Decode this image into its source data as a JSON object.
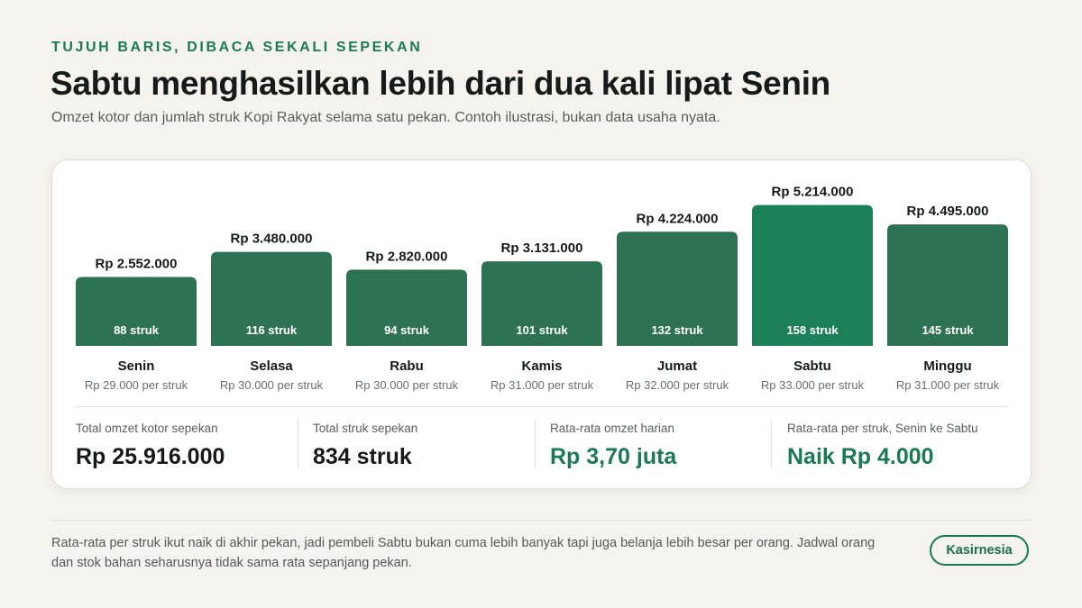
{
  "header": {
    "eyebrow": "TUJUH BARIS, DIBACA SEKALI SEPEKAN",
    "title": "Sabtu menghasilkan lebih dari dua kali lipat Senin",
    "subtitle": "Omzet kotor dan jumlah struk Kopi Rakyat selama satu pekan. Contoh ilustrasi, bukan data usaha nyata."
  },
  "colors": {
    "bar": "#2e7254",
    "highlight": "#1b7f57",
    "accent": "#1b7a52"
  },
  "chart_data": {
    "type": "bar",
    "categories": [
      "Senin",
      "Selasa",
      "Rabu",
      "Kamis",
      "Jumat",
      "Sabtu",
      "Minggu"
    ],
    "values": [
      2552000,
      3480000,
      2820000,
      3131000,
      4224000,
      5214000,
      4495000
    ],
    "value_labels": [
      "Rp 2.552.000",
      "Rp 3.480.000",
      "Rp 2.820.000",
      "Rp 3.131.000",
      "Rp 4.224.000",
      "Rp 5.214.000",
      "Rp 4.495.000"
    ],
    "receipts": [
      88,
      116,
      94,
      101,
      132,
      158,
      145
    ],
    "receipt_labels": [
      "88 struk",
      "116 struk",
      "94 struk",
      "101 struk",
      "132 struk",
      "158 struk",
      "145 struk"
    ],
    "per_receipt_labels": [
      "Rp 29.000 per struk",
      "Rp 30.000 per struk",
      "Rp 30.000 per struk",
      "Rp 31.000 per struk",
      "Rp 32.000 per struk",
      "Rp 33.000 per struk",
      "Rp 31.000 per struk"
    ],
    "highlight_category": "Sabtu",
    "ylim": [
      0,
      5700000
    ],
    "grid": false
  },
  "stats": [
    {
      "label": "Total omzet kotor sepekan",
      "value": "Rp 25.916.000",
      "accent": false
    },
    {
      "label": "Total struk sepekan",
      "value": "834 struk",
      "accent": false
    },
    {
      "label": "Rata-rata omzet harian",
      "value": "Rp 3,70 juta",
      "accent": true
    },
    {
      "label": "Rata-rata per struk, Senin ke Sabtu",
      "value": "Naik Rp 4.000",
      "accent": true
    }
  ],
  "footer": {
    "note": "Rata-rata per struk ikut naik di akhir pekan, jadi pembeli Sabtu bukan cuma lebih banyak tapi juga belanja lebih besar per orang. Jadwal orang dan stok bahan seharusnya tidak sama rata sepanjang pekan.",
    "brand": "Kasirnesia"
  }
}
